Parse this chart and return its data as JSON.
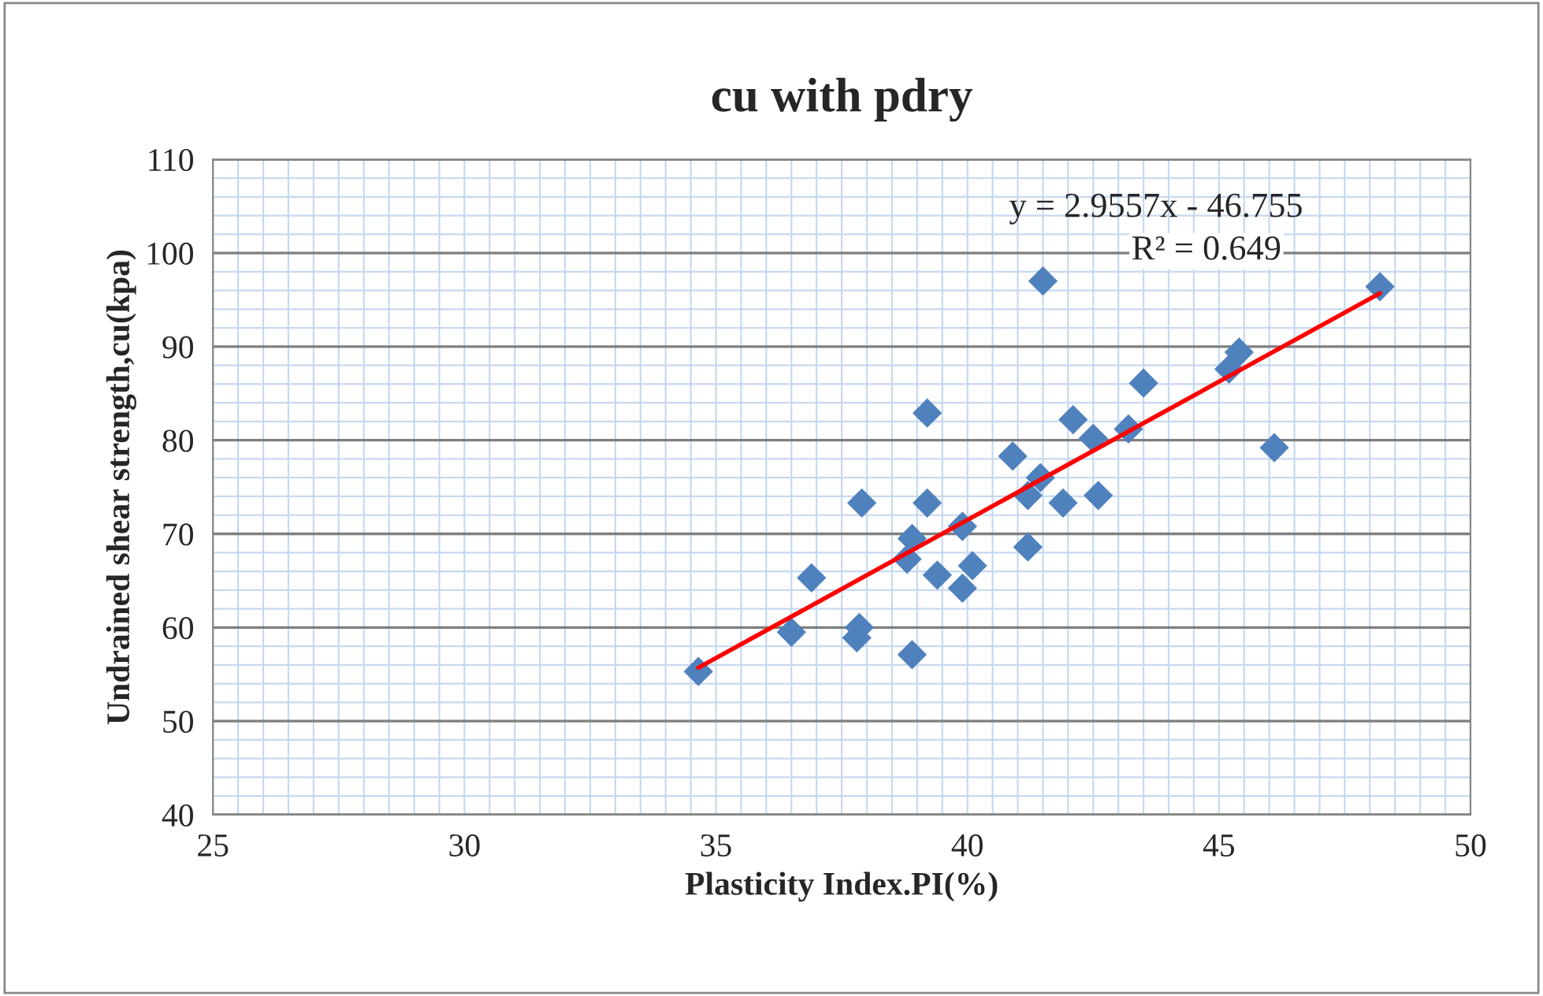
{
  "chart_data": {
    "type": "scatter",
    "title": "cu with pdry",
    "xlabel": "Plasticity Index.PI(%)",
    "ylabel": "Undrained shear strength,cu(kpa)",
    "xlim": [
      25,
      50
    ],
    "xticks": [
      25,
      30,
      35,
      40,
      45,
      50
    ],
    "ylim": [
      40,
      110
    ],
    "yticks": [
      40,
      50,
      60,
      70,
      80,
      90,
      100,
      110
    ],
    "grid": true,
    "legend": false,
    "marker": "diamond",
    "annotations": [
      "y = 2.9557x - 46.755",
      "R² = 0.649"
    ],
    "series": [
      {
        "color": "#4f81bd",
        "x": [
          34.65,
          36.5,
          36.9,
          37.8,
          37.85,
          37.9,
          38.9,
          38.9,
          38.8,
          39.2,
          39.2,
          39.4,
          39.9,
          40.1,
          39.9,
          40.9,
          41.2,
          41.2,
          41.45,
          41.5,
          41.9,
          42.1,
          42.5,
          42.6,
          43.2,
          43.5,
          45.2,
          45.4,
          46.1,
          48.2
        ],
        "values": [
          55.3,
          59.5,
          65.3,
          58.9,
          60.0,
          73.3,
          57.1,
          69.5,
          67.3,
          82.9,
          73.3,
          65.6,
          64.2,
          66.6,
          70.8,
          78.3,
          68.6,
          74.1,
          76.0,
          97.0,
          73.3,
          82.2,
          80.2,
          74.1,
          81.2,
          86.1,
          87.6,
          89.4,
          79.2,
          96.4
        ]
      },
      {
        "type": "line",
        "color": "#ff0000",
        "x": [
          34.65,
          48.2
        ],
        "values": [
          55.7,
          95.7
        ],
        "line_style": "solid",
        "marker": "none"
      }
    ]
  }
}
